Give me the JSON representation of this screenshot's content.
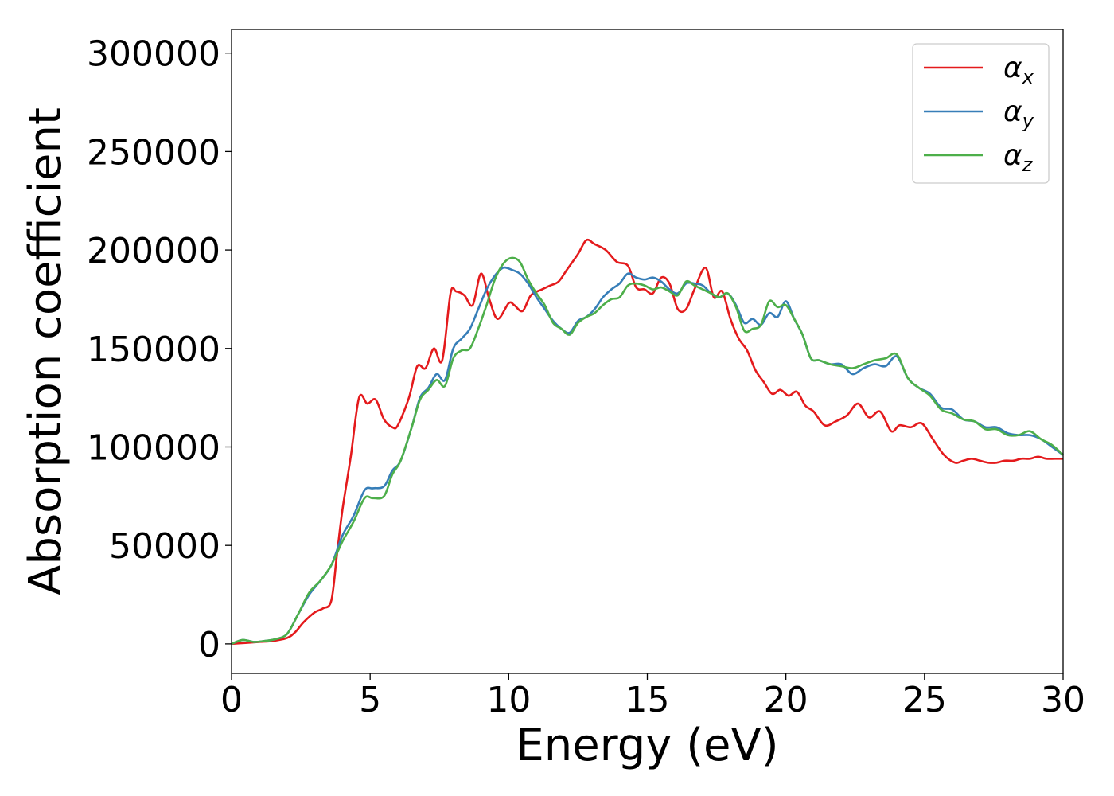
{
  "chart_data": {
    "type": "line",
    "title": "",
    "xlabel": "Energy (eV)",
    "ylabel": "Absorption coefficient",
    "xlim": [
      0,
      30
    ],
    "ylim": [
      -15000,
      312000
    ],
    "xticks": [
      0,
      5,
      10,
      15,
      20,
      25,
      30
    ],
    "xtick_labels": [
      "0",
      "5",
      "10",
      "15",
      "20",
      "25",
      "30"
    ],
    "yticks": [
      0,
      50000,
      100000,
      150000,
      200000,
      250000,
      300000
    ],
    "ytick_labels": [
      "0",
      "50000",
      "100000",
      "150000",
      "200000",
      "250000",
      "300000"
    ],
    "grid": false,
    "legend_position": "top-right",
    "series": [
      {
        "name": "αx",
        "symbol": "α",
        "subscript": "x",
        "color": "#e41a1c",
        "x": [
          0,
          0.5,
          1,
          1.5,
          2,
          2.3,
          2.6,
          3,
          3.3,
          3.6,
          3.8,
          4,
          4.3,
          4.6,
          4.9,
          5.2,
          5.5,
          5.8,
          6,
          6.4,
          6.7,
          7,
          7.3,
          7.6,
          7.9,
          8.1,
          8.4,
          8.7,
          9,
          9.3,
          9.6,
          10,
          10.2,
          10.5,
          10.8,
          11.2,
          11.5,
          11.8,
          12.1,
          12.5,
          12.8,
          13.1,
          13.5,
          13.9,
          14.3,
          14.6,
          14.9,
          15.2,
          15.5,
          15.8,
          16.1,
          16.4,
          16.7,
          17.1,
          17.4,
          17.7,
          18,
          18.3,
          18.6,
          18.9,
          19.2,
          19.5,
          19.8,
          20.1,
          20.4,
          20.7,
          21,
          21.4,
          21.8,
          22.2,
          22.6,
          23,
          23.4,
          23.8,
          24.1,
          24.5,
          24.9,
          25.3,
          25.7,
          26.1,
          26.4,
          26.7,
          27,
          27.3,
          27.6,
          27.9,
          28.2,
          28.5,
          28.8,
          29.1,
          29.4,
          29.7,
          30
        ],
        "y": [
          0,
          500,
          1000,
          1500,
          3000,
          6000,
          11000,
          16000,
          18000,
          22000,
          45000,
          68000,
          95000,
          125000,
          122000,
          124000,
          114000,
          110000,
          111000,
          125000,
          141000,
          140000,
          150000,
          144000,
          178000,
          179000,
          177000,
          172000,
          188000,
          175000,
          165000,
          173000,
          172000,
          169000,
          177000,
          180000,
          182000,
          184000,
          190000,
          198000,
          205000,
          203000,
          200000,
          194000,
          192000,
          181000,
          180000,
          178000,
          186000,
          183000,
          170000,
          170000,
          180000,
          191000,
          176000,
          179000,
          165000,
          155000,
          149000,
          139000,
          133000,
          127000,
          129000,
          126000,
          128000,
          121000,
          118000,
          111000,
          113000,
          116000,
          122000,
          115000,
          118000,
          108000,
          111000,
          110000,
          112000,
          104000,
          96000,
          92000,
          93000,
          94000,
          93000,
          92000,
          92000,
          93000,
          93000,
          94000,
          94000,
          95000,
          94000,
          94000,
          94000
        ]
      },
      {
        "name": "αy",
        "symbol": "α",
        "subscript": "y",
        "color": "#377eb8",
        "x": [
          0,
          0.4,
          0.8,
          1.2,
          1.6,
          2,
          2.4,
          2.8,
          3.2,
          3.6,
          4,
          4.4,
          4.8,
          5.1,
          5.5,
          5.8,
          6.1,
          6.5,
          6.8,
          7.1,
          7.4,
          7.7,
          8,
          8.3,
          8.6,
          8.9,
          9.2,
          9.5,
          9.8,
          10.1,
          10.4,
          10.7,
          11,
          11.3,
          11.6,
          11.9,
          12.2,
          12.5,
          12.8,
          13.1,
          13.4,
          13.7,
          14,
          14.3,
          14.6,
          14.9,
          15.2,
          15.5,
          15.8,
          16.1,
          16.4,
          16.7,
          17,
          17.3,
          17.6,
          17.9,
          18.2,
          18.5,
          18.8,
          19.1,
          19.4,
          19.7,
          20,
          20.3,
          20.6,
          20.9,
          21.2,
          21.6,
          22,
          22.4,
          22.8,
          23.2,
          23.6,
          24,
          24.4,
          24.8,
          25.2,
          25.6,
          26,
          26.4,
          26.8,
          27.2,
          27.6,
          28,
          28.4,
          28.8,
          29.2,
          29.6,
          30
        ],
        "y": [
          0,
          2000,
          1000,
          1500,
          2500,
          5000,
          15000,
          25000,
          32000,
          40000,
          55000,
          65000,
          78000,
          79000,
          80000,
          88000,
          93000,
          110000,
          125000,
          130000,
          137000,
          134000,
          150000,
          155000,
          160000,
          170000,
          180000,
          187000,
          191000,
          190000,
          188000,
          183000,
          176000,
          170000,
          164000,
          160000,
          158000,
          164000,
          166000,
          170000,
          176000,
          180000,
          183000,
          188000,
          186000,
          185000,
          186000,
          184000,
          180000,
          178000,
          183000,
          183000,
          182000,
          178000,
          176000,
          178000,
          172000,
          163000,
          165000,
          162000,
          168000,
          166000,
          174000,
          165000,
          157000,
          145000,
          144000,
          142000,
          142000,
          137000,
          140000,
          142000,
          141000,
          146000,
          135000,
          130000,
          127000,
          120000,
          119000,
          114000,
          113000,
          110000,
          110000,
          107000,
          106000,
          106000,
          104000,
          100000,
          96000
        ]
      },
      {
        "name": "αz",
        "symbol": "α",
        "subscript": "z",
        "color": "#4daf4a",
        "x": [
          0,
          0.4,
          0.8,
          1.2,
          1.6,
          2,
          2.4,
          2.8,
          3.2,
          3.6,
          4,
          4.4,
          4.8,
          5.1,
          5.5,
          5.8,
          6.1,
          6.5,
          6.8,
          7.1,
          7.4,
          7.7,
          8,
          8.3,
          8.6,
          8.9,
          9.2,
          9.5,
          9.8,
          10.1,
          10.4,
          10.7,
          11,
          11.3,
          11.6,
          11.9,
          12.2,
          12.5,
          12.8,
          13.1,
          13.4,
          13.7,
          14,
          14.3,
          14.6,
          14.9,
          15.2,
          15.5,
          15.8,
          16.1,
          16.4,
          16.7,
          17,
          17.3,
          17.6,
          17.9,
          18.2,
          18.5,
          18.8,
          19.1,
          19.4,
          19.7,
          20,
          20.3,
          20.6,
          20.9,
          21.2,
          21.6,
          22,
          22.4,
          22.8,
          23.2,
          23.6,
          24,
          24.4,
          24.8,
          25.2,
          25.6,
          26,
          26.4,
          26.8,
          27.2,
          27.6,
          28,
          28.4,
          28.8,
          29.2,
          29.6,
          30
        ],
        "y": [
          0,
          2000,
          1000,
          1500,
          2500,
          5000,
          15000,
          26000,
          32000,
          40000,
          52000,
          62000,
          74000,
          74000,
          75000,
          86000,
          93000,
          110000,
          124000,
          129000,
          134000,
          131000,
          145000,
          149000,
          150000,
          160000,
          172000,
          185000,
          193000,
          196000,
          194000,
          185000,
          178000,
          172000,
          163000,
          160000,
          157000,
          163000,
          166000,
          168000,
          172000,
          175000,
          176000,
          182000,
          183000,
          182000,
          180000,
          181000,
          179000,
          177000,
          184000,
          182000,
          180000,
          178000,
          176000,
          178000,
          171000,
          159000,
          160000,
          162000,
          174000,
          171000,
          172000,
          165000,
          157000,
          145000,
          144000,
          142000,
          141000,
          140000,
          142000,
          144000,
          145000,
          147000,
          135000,
          130000,
          126000,
          119000,
          117000,
          114000,
          113000,
          109000,
          109000,
          106000,
          106000,
          108000,
          104000,
          101000,
          96000
        ]
      }
    ]
  }
}
